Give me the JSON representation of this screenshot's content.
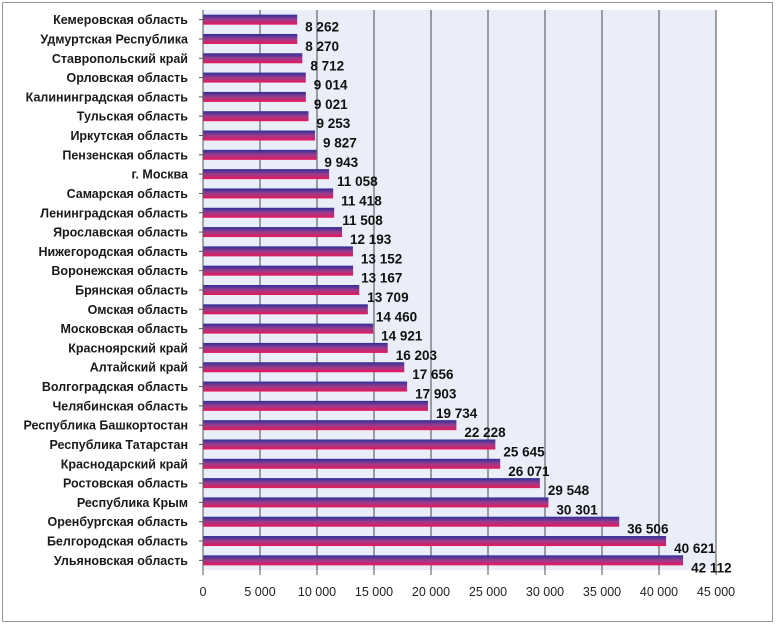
{
  "chart_data": {
    "type": "bar",
    "orientation": "horizontal",
    "title": "",
    "xlabel": "",
    "ylabel": "",
    "categories": [
      "Кемеровская область",
      "Удмуртская Республика",
      "Ставропольский край",
      "Орловская область",
      "Калининградская область",
      "Тульская область",
      "Иркутская область",
      "Пензенская область",
      "г. Москва",
      "Самарская область",
      "Ленинградская область",
      "Ярославская область",
      "Нижегородская область",
      "Воронежская область",
      "Брянская область",
      "Омская область",
      "Московская область",
      "Красноярский край",
      "Алтайский край",
      "Волгоградская область",
      "Челябинская область",
      "Республика Башкортостан",
      "Республика Татарстан",
      "Краснодарский край",
      "Ростовская область",
      "Республика Крым",
      "Оренбургская область",
      "Белгородская область",
      "Ульяновская область"
    ],
    "values": [
      8262,
      8270,
      8712,
      9014,
      9021,
      9253,
      9827,
      9943,
      11058,
      11418,
      11508,
      12193,
      13152,
      13167,
      13709,
      14460,
      14921,
      16203,
      17656,
      17903,
      19734,
      22228,
      25645,
      26071,
      29548,
      30301,
      36506,
      40621,
      42112
    ],
    "value_labels": [
      "8 262",
      "8 270",
      "8 712",
      "9 014",
      "9 021",
      "9 253",
      "9 827",
      "9 943",
      "11 058",
      "11 418",
      "11 508",
      "12 193",
      "13 152",
      "13 167",
      "13 709",
      "14 460",
      "14 921",
      "16 203",
      "17 656",
      "17 903",
      "19 734",
      "22 228",
      "25 645",
      "26 071",
      "29 548",
      "30 301",
      "36 506",
      "40 621",
      "42 112"
    ],
    "xlim": [
      0,
      45000
    ],
    "x_ticks": [
      0,
      5000,
      10000,
      15000,
      20000,
      25000,
      30000,
      35000,
      40000,
      45000
    ],
    "x_tick_labels": [
      "0",
      "5 000",
      "10 000",
      "15 000",
      "20 000",
      "25 000",
      "30 000",
      "35 000",
      "40 000",
      "45 000"
    ],
    "grid": "vertical",
    "legend": "none",
    "colors": {
      "plot_background": "#e9eef8",
      "bar_top": "#2d2f9a",
      "bar_middle": "#9a3c8c",
      "bar_bottom": "#e8175a",
      "gridline": "#1e1e1e"
    }
  }
}
